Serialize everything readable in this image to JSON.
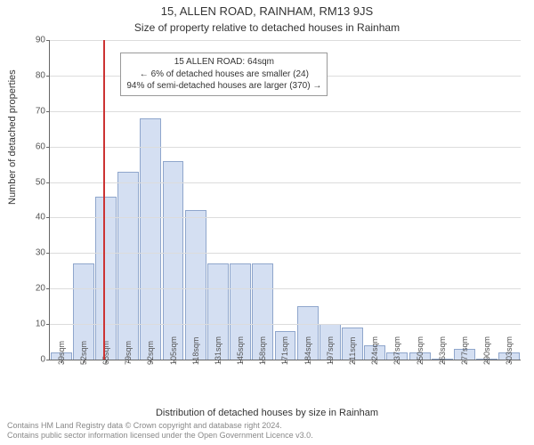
{
  "title_main": "15, ALLEN ROAD, RAINHAM, RM13 9JS",
  "title_sub": "Size of property relative to detached houses in Rainham",
  "ylabel": "Number of detached properties",
  "xlabel": "Distribution of detached houses by size in Rainham",
  "footer_line1": "Contains HM Land Registry data © Crown copyright and database right 2024.",
  "footer_line2": "Contains public sector information licensed under the Open Government Licence v3.0.",
  "chart": {
    "type": "histogram",
    "ylim": [
      0,
      90
    ],
    "ytick_step": 10,
    "bar_fill": "#d4dff2",
    "bar_stroke": "#8fa6cc",
    "marker_color": "#cc3333",
    "marker_sqm": 64,
    "categories": [
      "39sqm",
      "52sqm",
      "65sqm",
      "79sqm",
      "92sqm",
      "105sqm",
      "118sqm",
      "131sqm",
      "145sqm",
      "158sqm",
      "171sqm",
      "184sqm",
      "197sqm",
      "211sqm",
      "224sqm",
      "237sqm",
      "250sqm",
      "263sqm",
      "277sqm",
      "290sqm",
      "303sqm"
    ],
    "values": [
      2,
      27,
      46,
      53,
      68,
      56,
      42,
      27,
      27,
      27,
      8,
      15,
      10,
      9,
      4,
      2,
      2,
      0,
      3,
      0,
      2
    ],
    "grid_color": "#dcdcdc",
    "axis_color": "#666666",
    "font_family": "Arial",
    "title_fontsize": 13,
    "subtitle_fontsize": 12,
    "axis_label_fontsize": 11,
    "tick_fontsize": 10
  },
  "annotation": {
    "line1": "15 ALLEN ROAD: 64sqm",
    "line2": "← 6% of detached houses are smaller (24)",
    "line3": "94% of semi-detached houses are larger (370) →"
  }
}
